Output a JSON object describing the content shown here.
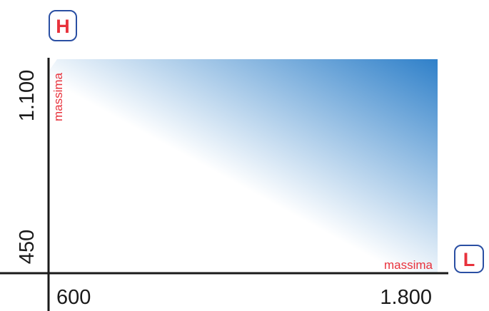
{
  "axes": {
    "vertical": {
      "badge": "H",
      "tick_min": "450",
      "tick_max": "1.100",
      "max_note": "massima"
    },
    "horizontal": {
      "badge": "L",
      "tick_min": "600",
      "tick_max": "1.800",
      "max_note": "massima"
    }
  },
  "colors": {
    "badge_border": "#2a4fa3",
    "badge_text": "#e8323c",
    "note_text": "#e8323c",
    "gradient_light": "#ffffff",
    "gradient_dark": "#2f80c9"
  }
}
